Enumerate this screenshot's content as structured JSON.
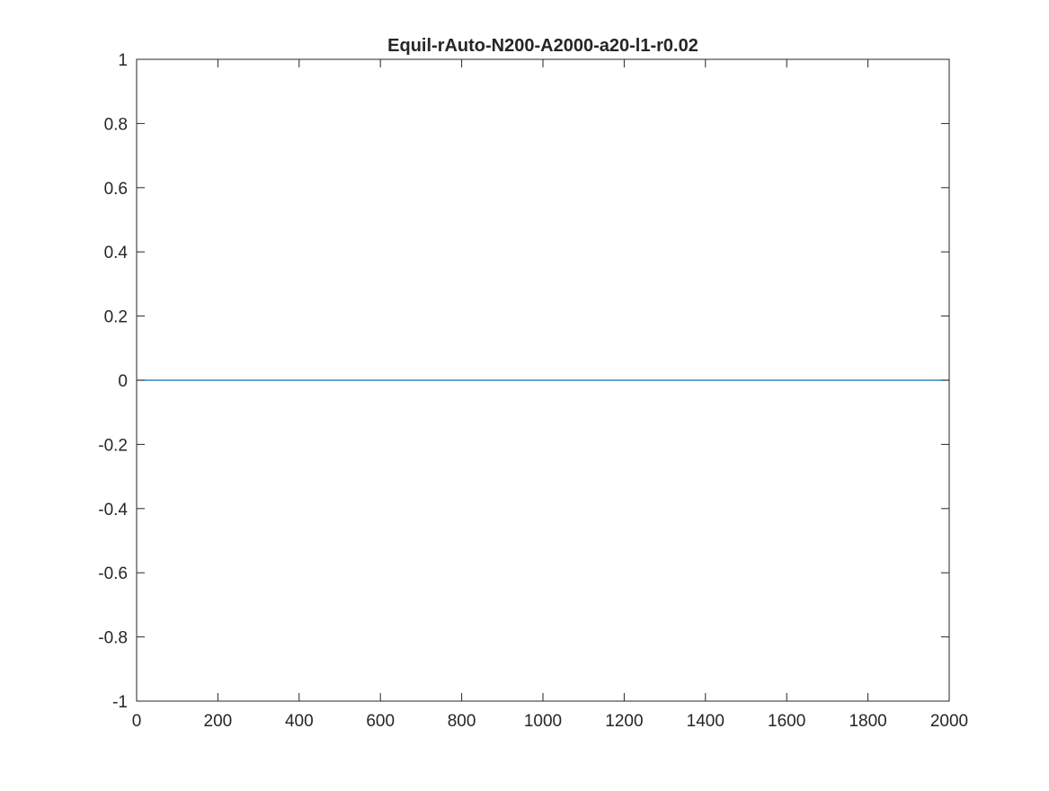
{
  "chart_data": {
    "type": "line",
    "title": "Equil-rAuto-N200-A2000-a20-l1-r0.02",
    "xlabel": "",
    "ylabel": "",
    "xlim": [
      0,
      2000
    ],
    "ylim": [
      -1,
      1
    ],
    "x_ticks": [
      0,
      200,
      400,
      600,
      800,
      1000,
      1200,
      1400,
      1600,
      1800,
      2000
    ],
    "x_tick_labels": [
      "0",
      "200",
      "400",
      "600",
      "800",
      "1000",
      "1200",
      "1400",
      "1600",
      "1800",
      "2000"
    ],
    "y_ticks": [
      -1,
      -0.8,
      -0.6,
      -0.4,
      -0.2,
      0,
      0.2,
      0.4,
      0.6,
      0.8,
      1
    ],
    "y_tick_labels": [
      "-1",
      "-0.8",
      "-0.6",
      "-0.4",
      "-0.2",
      "0",
      "0.2",
      "0.4",
      "0.6",
      "0.8",
      "1"
    ],
    "grid": false,
    "legend": "none",
    "series": [
      {
        "color": "#0072BD",
        "x": [
          0,
          2000
        ],
        "y": [
          0,
          0
        ]
      }
    ]
  }
}
